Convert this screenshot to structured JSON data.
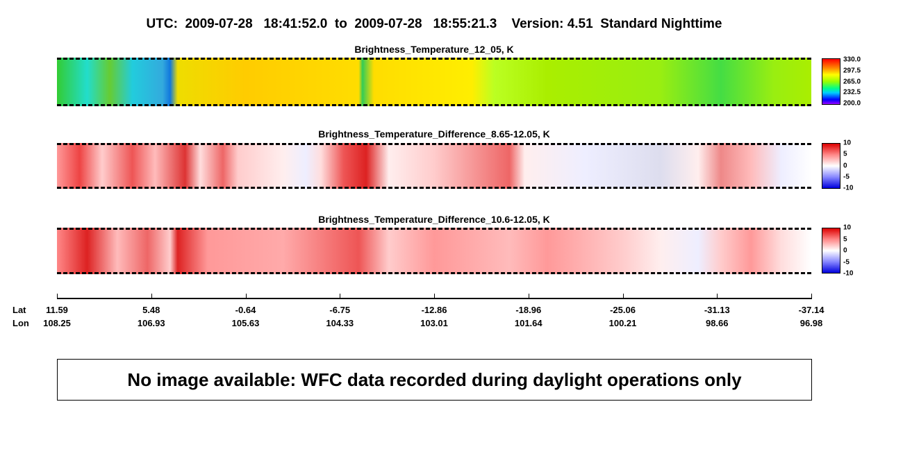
{
  "title": "UTC:  2009-07-28   18:41:52.0  to  2009-07-28   18:55:21.3    Version: 4.51  Standard Nighttime",
  "panels": [
    {
      "title": "Brightness_Temperature_12_05, K",
      "colorbar": [
        "330.0",
        "297.5",
        "265.0",
        "232.5",
        "200.0"
      ]
    },
    {
      "title": "Brightness_Temperature_Difference_8.65-12.05, K",
      "colorbar": [
        "10",
        "5",
        "0",
        "-5",
        "-10"
      ]
    },
    {
      "title": "Brightness_Temperature_Difference_10.6-12.05, K",
      "colorbar": [
        "10",
        "5",
        "0",
        "-5",
        "-10"
      ]
    }
  ],
  "axis": {
    "lat_label": "Lat",
    "lon_label": "Lon",
    "lat": [
      "11.59",
      "5.48",
      "-0.64",
      "-6.75",
      "-12.86",
      "-18.96",
      "-25.06",
      "-31.13",
      "-37.14"
    ],
    "lon": [
      "108.25",
      "106.93",
      "105.63",
      "104.33",
      "103.01",
      "101.64",
      "100.21",
      "98.66",
      "96.98"
    ]
  },
  "message": "No image available: WFC data recorded during daylight operations only"
}
